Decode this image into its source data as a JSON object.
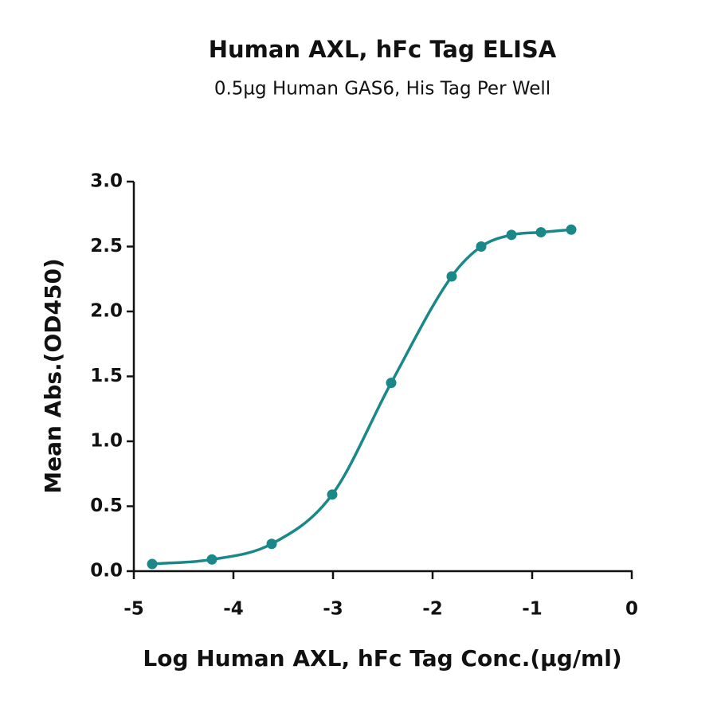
{
  "chart_data": {
    "type": "scatter",
    "title": "Human AXL, hFc Tag ELISA",
    "subtitle": "0.5µg Human GAS6, His Tag Per Well",
    "x_label": "Log Human AXL, hFc Tag Conc.(µg/ml)",
    "y_label": "Mean Abs.(OD450)",
    "x": [
      -4.816,
      -4.216,
      -3.616,
      -3.008,
      -2.416,
      -1.808,
      -1.512,
      -1.208,
      -0.912,
      -0.608
    ],
    "values": [
      0.055,
      0.09,
      0.21,
      0.59,
      1.45,
      2.27,
      2.5,
      2.59,
      2.61,
      2.63
    ],
    "color": "#1a8789",
    "fit_curve": true,
    "xlim": [
      -5,
      0
    ],
    "xticks": [
      -5,
      -4,
      -3,
      -2,
      -1,
      0
    ],
    "ylim": [
      0,
      3
    ],
    "yticks": [
      {
        "value": 0,
        "label": "0.0"
      },
      0.5,
      {
        "value": 1,
        "label": "1.0"
      },
      1.5,
      {
        "value": 2,
        "label": "2.0"
      },
      2.5,
      {
        "value": 3,
        "label": "3.0"
      }
    ]
  }
}
